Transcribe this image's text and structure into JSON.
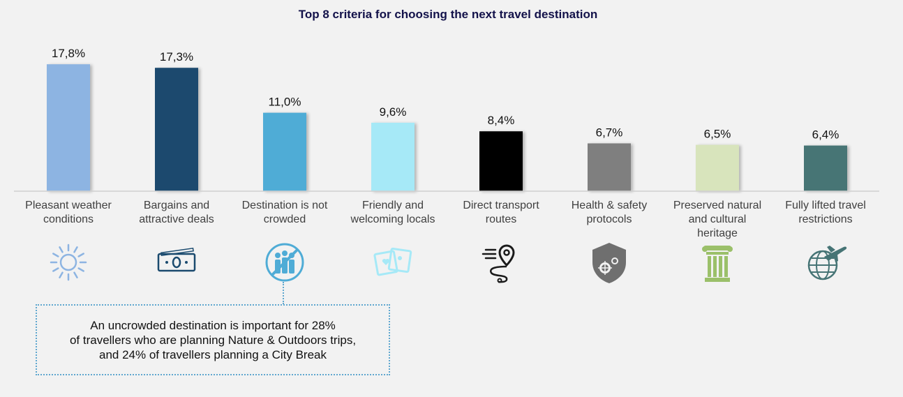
{
  "chart_data": {
    "type": "bar",
    "title": "Top 8 criteria for choosing the next travel destination",
    "categories": [
      "Pleasant weather conditions",
      "Bargains and attractive deals",
      "Destination is not crowded",
      "Friendly and welcoming locals",
      "Direct transport routes",
      "Health & safety protocols",
      "Preserved natural and cultural heritage",
      "Fully lifted travel restrictions"
    ],
    "category_lines": [
      [
        "Pleasant weather",
        "conditions"
      ],
      [
        "Bargains and",
        "attractive deals"
      ],
      [
        "Destination is not",
        "crowded"
      ],
      [
        "Friendly and",
        "welcoming locals"
      ],
      [
        "Direct transport",
        "routes"
      ],
      [
        "Health & safety",
        "protocols"
      ],
      [
        "Preserved natural",
        "and cultural",
        "heritage"
      ],
      [
        "Fully lifted travel",
        "restrictions"
      ]
    ],
    "values": [
      17.8,
      17.3,
      11.0,
      9.6,
      8.4,
      6.7,
      6.5,
      6.4
    ],
    "data_labels": [
      "17,8%",
      "17,3%",
      "11,0%",
      "9,6%",
      "8,4%",
      "6,7%",
      "6,5%",
      "6,4%"
    ],
    "colors": [
      "#8db4e2",
      "#1a4a6e",
      "#4facd6",
      "#a6e9f7",
      "#000000",
      "#7f7f7f",
      "#d8e4bc",
      "#467475"
    ],
    "icons": [
      "sun-icon",
      "banknote-icon",
      "no-crowd-icon",
      "photos-heart-icon",
      "route-pin-icon",
      "virus-shield-icon",
      "column-icon",
      "plane-globe-icon"
    ],
    "icon_colors": [
      "#8db4e2",
      "#1a4a6e",
      "#4facd6",
      "#a6e9f7",
      "#1a1a1a",
      "#6f6f6f",
      "#9bc06a",
      "#467475"
    ],
    "xlabel": "",
    "ylabel": "",
    "ylim": [
      0,
      20
    ],
    "grid": false,
    "legend": "none"
  },
  "callout": {
    "text": "An uncrowded destination is important for 28%\nof travellers who are planning Nature & Outdoors trips,\nand 24% of travellers planning a City Break"
  }
}
